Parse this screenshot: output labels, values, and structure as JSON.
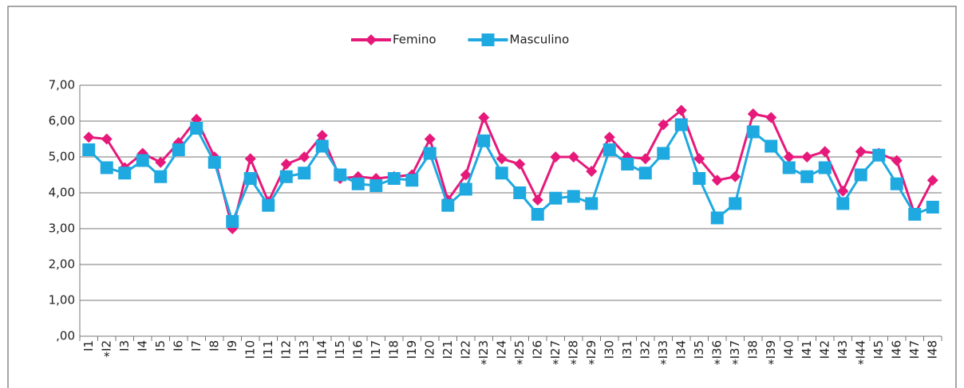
{
  "chart_data": {
    "type": "line",
    "categories": [
      "I1",
      "I2",
      "I3",
      "I4",
      "I5",
      "I6",
      "I7",
      "I8",
      "I9",
      "I10",
      "I11",
      "I12",
      "I13",
      "I14",
      "I15",
      "I16",
      "I17",
      "I18",
      "I19",
      "I20",
      "I21",
      "I22",
      "I23",
      "I24",
      "I25",
      "I26",
      "I27",
      "I28",
      "I29",
      "I30",
      "I31",
      "I32",
      "I33",
      "I34",
      "I35",
      "I36",
      "I37",
      "I38",
      "I39",
      "I40",
      "I41",
      "I42",
      "I43",
      "I44",
      "I45",
      "I46",
      "I47",
      "I48"
    ],
    "category_notes": [
      null,
      "*",
      null,
      null,
      null,
      null,
      null,
      null,
      null,
      null,
      null,
      null,
      null,
      null,
      null,
      null,
      null,
      null,
      null,
      null,
      null,
      null,
      "*",
      null,
      "*",
      null,
      "*",
      "*",
      "*",
      null,
      null,
      null,
      "*",
      null,
      null,
      "*",
      "*",
      null,
      "*",
      null,
      null,
      null,
      null,
      "*",
      null,
      null,
      null,
      null
    ],
    "series": [
      {
        "name": "Femino",
        "color": "#e6197b",
        "marker": "diamond",
        "values": [
          5.55,
          5.5,
          4.7,
          5.1,
          4.85,
          5.4,
          6.05,
          5.0,
          3.0,
          4.95,
          3.75,
          4.8,
          5.0,
          5.6,
          4.4,
          4.45,
          4.4,
          4.45,
          4.5,
          5.5,
          3.8,
          4.5,
          6.1,
          4.95,
          4.8,
          3.8,
          5.0,
          5.0,
          4.6,
          5.55,
          5.0,
          4.95,
          5.9,
          6.3,
          4.95,
          4.35,
          4.45,
          6.2,
          6.1,
          5.0,
          5.0,
          5.15,
          4.05,
          5.15,
          5.1,
          4.9,
          3.4,
          4.35
        ]
      },
      {
        "name": "Masculino",
        "color": "#1fa9e1",
        "marker": "square",
        "values": [
          5.2,
          4.7,
          4.55,
          4.9,
          4.45,
          5.2,
          5.8,
          4.85,
          3.2,
          4.4,
          3.65,
          4.45,
          4.55,
          5.3,
          4.5,
          4.25,
          4.2,
          4.4,
          4.35,
          5.1,
          3.65,
          4.1,
          5.45,
          4.55,
          4.0,
          3.4,
          3.85,
          3.9,
          3.7,
          5.2,
          4.8,
          4.55,
          5.1,
          5.9,
          4.4,
          3.3,
          3.7,
          5.7,
          5.3,
          4.7,
          4.45,
          4.7,
          3.7,
          4.5,
          5.05,
          4.25,
          3.4,
          3.6
        ]
      }
    ],
    "ylim": [
      0,
      7
    ],
    "yticks": [
      {
        "value": 0,
        "label": ",00"
      },
      {
        "value": 1,
        "label": "1,00"
      },
      {
        "value": 2,
        "label": "2,00"
      },
      {
        "value": 3,
        "label": "3,00"
      },
      {
        "value": 4,
        "label": "4,00"
      },
      {
        "value": 5,
        "label": "5,00"
      },
      {
        "value": 6,
        "label": "6,00"
      },
      {
        "value": 7,
        "label": "7,00"
      }
    ],
    "grid": true,
    "legend": "top"
  }
}
